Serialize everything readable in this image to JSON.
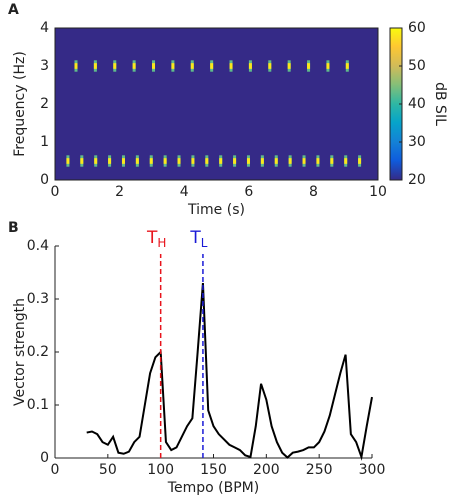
{
  "chart_data": [
    {
      "type": "spectrogram",
      "panel_label": "A",
      "x_label": "Time (s)",
      "y_label": "Frequency (Hz)",
      "xlim": [
        0,
        10
      ],
      "xticks": [
        0,
        2,
        4,
        6,
        8,
        10
      ],
      "ylim": [
        0,
        4
      ],
      "yticks": [
        0,
        1,
        2,
        3,
        4
      ],
      "background_db": 20,
      "event_db": 58,
      "event_halfwidth_hz": 0.15,
      "rows": [
        {
          "frequency": 3,
          "times": [
            0.65,
            1.25,
            1.85,
            2.45,
            3.05,
            3.65,
            4.25,
            4.85,
            5.45,
            6.05,
            6.65,
            7.25,
            7.85,
            8.45,
            9.05
          ]
        },
        {
          "frequency": 0.5,
          "times": [
            0.4,
            0.83,
            1.26,
            1.69,
            2.12,
            2.55,
            2.98,
            3.41,
            3.84,
            4.27,
            4.7,
            5.13,
            5.56,
            5.99,
            6.42,
            6.85,
            7.28,
            7.71,
            8.14,
            8.57,
            9.0,
            9.43
          ]
        }
      ],
      "colorbar_label": "dB SIL",
      "clim": [
        20,
        60
      ],
      "cticks": [
        20,
        30,
        40,
        50,
        60
      ]
    },
    {
      "type": "line",
      "panel_label": "B",
      "x_label": "Tempo (BPM)",
      "y_label": "Vector strength",
      "xlim": [
        0,
        300
      ],
      "xticks": [
        0,
        50,
        100,
        150,
        200,
        250,
        300
      ],
      "ylim": [
        0,
        0.4
      ],
      "yticks": [
        0,
        0.1,
        0.2,
        0.3,
        0.4
      ],
      "color": "#000000",
      "x": [
        30,
        35,
        40,
        45,
        50,
        55,
        60,
        65,
        70,
        75,
        80,
        85,
        90,
        95,
        100,
        105,
        110,
        115,
        120,
        125,
        130,
        135,
        140,
        145,
        150,
        155,
        160,
        165,
        170,
        175,
        180,
        185,
        190,
        195,
        200,
        205,
        210,
        215,
        220,
        225,
        230,
        235,
        240,
        245,
        250,
        255,
        260,
        265,
        270,
        275,
        280,
        285,
        290,
        295,
        300
      ],
      "values": [
        0.048,
        0.05,
        0.045,
        0.03,
        0.025,
        0.04,
        0.01,
        0.008,
        0.012,
        0.03,
        0.04,
        0.1,
        0.16,
        0.19,
        0.2,
        0.03,
        0.015,
        0.02,
        0.04,
        0.06,
        0.075,
        0.2,
        0.33,
        0.09,
        0.06,
        0.045,
        0.035,
        0.025,
        0.02,
        0.015,
        0.005,
        0.002,
        0.06,
        0.14,
        0.11,
        0.06,
        0.03,
        0.01,
        0.001,
        0.01,
        0.012,
        0.015,
        0.02,
        0.02,
        0.03,
        0.05,
        0.08,
        0.12,
        0.16,
        0.195,
        0.045,
        0.03,
        0.002,
        0.06,
        0.115
      ],
      "markers": [
        {
          "x": 100,
          "label": "T",
          "sub": "H",
          "color": "#e8141c"
        },
        {
          "x": 140,
          "label": "T",
          "sub": "L",
          "color": "#1a1ad6"
        }
      ]
    }
  ]
}
